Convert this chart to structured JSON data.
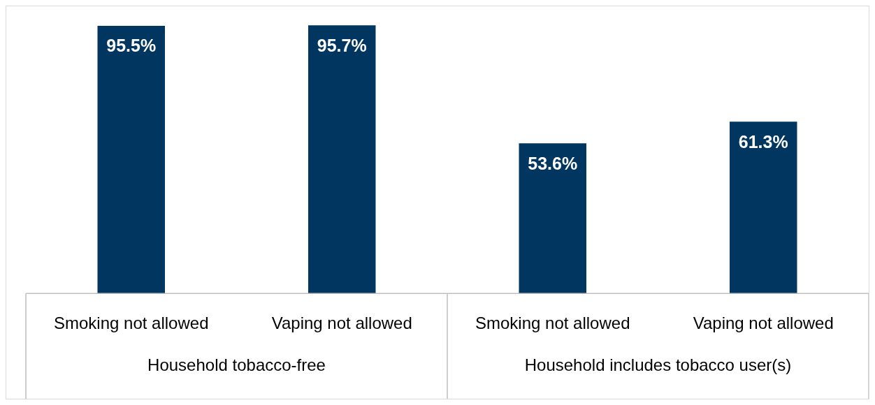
{
  "chart_data": {
    "type": "bar",
    "categories": [
      "Smoking not allowed",
      "Vaping not allowed",
      "Smoking not allowed",
      "Vaping not allowed"
    ],
    "values": [
      95.5,
      95.7,
      53.6,
      61.3
    ],
    "value_labels": [
      "95.5%",
      "95.7%",
      "53.6%",
      "61.3%"
    ],
    "color": "#003660",
    "annotations": [
      "Household tobacco-free",
      "Household includes tobacco user(s)"
    ]
  }
}
